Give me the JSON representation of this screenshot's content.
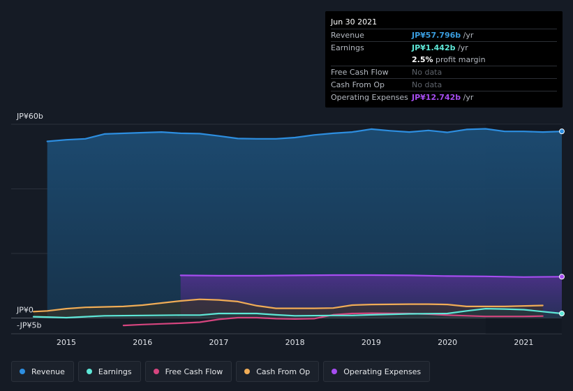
{
  "tooltip": {
    "date": "Jun 30 2021",
    "rows": [
      {
        "label": "Revenue",
        "value": "JP¥57.796b",
        "unit": " /yr",
        "color": "#3a9ee0"
      },
      {
        "label": "Earnings",
        "value": "JP¥1.442b",
        "unit": " /yr",
        "color": "#5ee7d7"
      },
      {
        "label": "",
        "value": "2.5%",
        "unit": " profit margin",
        "color": "#ffffff"
      },
      {
        "label": "Free Cash Flow",
        "value": "No data",
        "unit": "",
        "color": ""
      },
      {
        "label": "Cash From Op",
        "value": "No data",
        "unit": "",
        "color": ""
      },
      {
        "label": "Operating Expenses",
        "value": "JP¥12.742b",
        "unit": " /yr",
        "color": "#a64df0"
      }
    ]
  },
  "legend": [
    {
      "label": "Revenue",
      "color": "#2d8ee0"
    },
    {
      "label": "Earnings",
      "color": "#5ee7d7"
    },
    {
      "label": "Free Cash Flow",
      "color": "#d6457f"
    },
    {
      "label": "Cash From Op",
      "color": "#f0ac56"
    },
    {
      "label": "Operating Expenses",
      "color": "#a64df0"
    }
  ],
  "chart_data": {
    "type": "area",
    "ylim": [
      -5,
      60
    ],
    "y_tick_labels": [
      {
        "value": 60,
        "label": "JP¥60b"
      },
      {
        "value": 0,
        "label": "JP¥0"
      },
      {
        "value": -5,
        "label": "-JP¥5b"
      }
    ],
    "xlim": [
      2014.57,
      2021.5
    ],
    "x_ticks": [
      2015,
      2016,
      2017,
      2018,
      2019,
      2020,
      2021
    ],
    "x_tick_labels": [
      "2015",
      "2016",
      "2017",
      "2018",
      "2019",
      "2020",
      "2021"
    ],
    "highlight_from": 2020.5,
    "series": [
      {
        "name": "Revenue",
        "color": "#2d8ee0",
        "fill": true,
        "x": [
          2014.75,
          2015.0,
          2015.25,
          2015.5,
          2016.0,
          2016.25,
          2016.5,
          2016.75,
          2017.0,
          2017.25,
          2017.5,
          2017.75,
          2018.0,
          2018.25,
          2018.5,
          2018.75,
          2019.0,
          2019.25,
          2019.5,
          2019.75,
          2020.0,
          2020.25,
          2020.5,
          2020.75,
          2021.0,
          2021.25,
          2021.5
        ],
        "y": [
          54.7,
          55.2,
          55.5,
          57.0,
          57.4,
          57.6,
          57.2,
          57.1,
          56.4,
          55.6,
          55.5,
          55.5,
          55.9,
          56.7,
          57.2,
          57.6,
          58.5,
          58.0,
          57.6,
          58.1,
          57.5,
          58.4,
          58.6,
          57.8,
          57.8,
          57.6,
          57.8
        ]
      },
      {
        "name": "Operating Expenses",
        "color": "#a64df0",
        "fill": true,
        "x": [
          2016.5,
          2017.0,
          2017.5,
          2018.0,
          2018.5,
          2019.0,
          2019.5,
          2020.0,
          2020.5,
          2021.0,
          2021.5
        ],
        "y": [
          13.2,
          13.1,
          13.1,
          13.2,
          13.3,
          13.3,
          13.2,
          13.0,
          12.9,
          12.7,
          12.8
        ]
      },
      {
        "name": "Cash From Op",
        "color": "#f0ac56",
        "fill": true,
        "x": [
          2014.57,
          2014.75,
          2015.0,
          2015.25,
          2015.75,
          2016.0,
          2016.5,
          2016.75,
          2017.0,
          2017.25,
          2017.5,
          2017.75,
          2018.0,
          2018.25,
          2018.5,
          2018.75,
          2019.0,
          2019.5,
          2019.75,
          2020.0,
          2020.25,
          2020.5,
          2020.75,
          2021.25
        ],
        "y": [
          2.0,
          2.2,
          2.9,
          3.3,
          3.6,
          4.0,
          5.3,
          5.8,
          5.6,
          5.1,
          3.8,
          3.0,
          3.0,
          3.0,
          3.1,
          4.0,
          4.2,
          4.3,
          4.3,
          4.2,
          3.6,
          3.6,
          3.6,
          3.9
        ]
      },
      {
        "name": "Free Cash Flow",
        "color": "#d6457f",
        "fill": false,
        "x": [
          2015.75,
          2016.0,
          2016.25,
          2016.5,
          2016.75,
          2017.0,
          2017.25,
          2017.5,
          2017.75,
          2018.0,
          2018.25,
          2018.5,
          2018.75,
          2019.0,
          2019.5,
          2019.75,
          2020.0,
          2020.5,
          2021.0,
          2021.25
        ],
        "y": [
          -2.3,
          -2.0,
          -1.8,
          -1.6,
          -1.3,
          -0.4,
          0.1,
          0.1,
          -0.2,
          -0.3,
          -0.2,
          1.0,
          1.4,
          1.5,
          1.4,
          1.2,
          0.9,
          0.5,
          0.5,
          0.6
        ]
      },
      {
        "name": "Earnings",
        "color": "#5ee7d7",
        "fill": true,
        "x": [
          2014.57,
          2014.75,
          2015.0,
          2015.25,
          2015.5,
          2016.0,
          2016.5,
          2016.75,
          2017.0,
          2017.25,
          2017.5,
          2017.75,
          2018.0,
          2018.5,
          2018.75,
          2019.0,
          2019.5,
          2020.0,
          2020.25,
          2020.5,
          2020.75,
          2021.0,
          2021.25,
          2021.5
        ],
        "y": [
          0.4,
          0.3,
          0.1,
          0.4,
          0.7,
          0.8,
          0.9,
          0.9,
          1.4,
          1.4,
          1.4,
          1.0,
          0.7,
          0.8,
          0.8,
          1.0,
          1.3,
          1.4,
          2.2,
          2.9,
          2.8,
          2.6,
          2.0,
          1.4
        ]
      }
    ]
  }
}
